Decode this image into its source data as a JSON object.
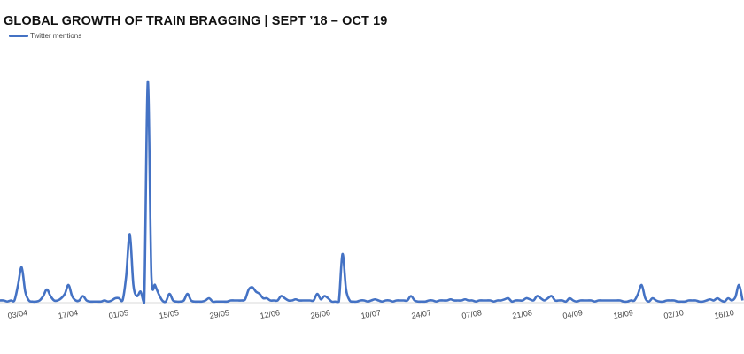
{
  "chart_data": {
    "type": "line",
    "title": "GLOBAL GROWTH OF TRAIN BRAGGING | SEPT ’18 – OCT 19",
    "xlabel": "",
    "ylabel": "",
    "ylim": [
      0,
      100
    ],
    "grid": false,
    "legend_placement": "top-left",
    "color": "#4472C4",
    "baseline_color": "#D9D9D9",
    "x_ticks": [
      "03/04",
      "17/04",
      "01/05",
      "15/05",
      "29/05",
      "12/06",
      "26/06",
      "10/07",
      "24/07",
      "07/08",
      "21/08",
      "04/09",
      "18/09",
      "02/10",
      "16/10"
    ],
    "x": [
      "29/03",
      "30/03",
      "31/03",
      "01/04",
      "02/04",
      "03/04",
      "04/04",
      "05/04",
      "06/04",
      "07/04",
      "08/04",
      "09/04",
      "10/04",
      "11/04",
      "12/04",
      "13/04",
      "14/04",
      "15/04",
      "16/04",
      "17/04",
      "18/04",
      "19/04",
      "20/04",
      "21/04",
      "22/04",
      "23/04",
      "24/04",
      "25/04",
      "26/04",
      "27/04",
      "28/04",
      "29/04",
      "30/04",
      "01/05",
      "02/05",
      "03/05",
      "04/05",
      "05/05",
      "06/05",
      "07/05",
      "08/05",
      "09/05",
      "10/05",
      "11/05",
      "12/05",
      "13/05",
      "14/05",
      "15/05",
      "16/05",
      "17/05",
      "18/05",
      "19/05",
      "20/05",
      "21/05",
      "22/05",
      "23/05",
      "24/05",
      "25/05",
      "26/05",
      "27/05",
      "28/05",
      "29/05",
      "30/05",
      "31/05",
      "01/06",
      "02/06",
      "03/06",
      "04/06",
      "05/06",
      "06/06",
      "07/06",
      "08/06",
      "09/06",
      "10/06",
      "11/06",
      "12/06",
      "13/06",
      "14/06",
      "15/06",
      "16/06",
      "17/06",
      "18/06",
      "19/06",
      "20/06",
      "21/06",
      "22/06",
      "23/06",
      "24/06",
      "25/06",
      "26/06",
      "27/06",
      "28/06",
      "29/06",
      "30/06",
      "01/07",
      "02/07",
      "03/07",
      "04/07",
      "05/07",
      "06/07",
      "07/07",
      "08/07",
      "09/07",
      "10/07",
      "11/07",
      "12/07",
      "13/07",
      "14/07",
      "15/07",
      "16/07",
      "17/07",
      "18/07",
      "19/07",
      "20/07",
      "21/07",
      "22/07",
      "23/07",
      "24/07",
      "25/07",
      "26/07",
      "27/07",
      "28/07",
      "29/07",
      "30/07",
      "31/07",
      "01/08",
      "02/08",
      "03/08",
      "04/08",
      "05/08",
      "06/08",
      "07/08",
      "08/08",
      "09/08",
      "10/08",
      "11/08",
      "12/08",
      "13/08",
      "14/08",
      "15/08",
      "16/08",
      "17/08",
      "18/08",
      "19/08",
      "20/08",
      "21/08",
      "22/08",
      "23/08",
      "24/08",
      "25/08",
      "26/08",
      "27/08",
      "28/08",
      "29/08",
      "30/08",
      "31/08",
      "01/09",
      "02/09",
      "03/09",
      "04/09",
      "05/09",
      "06/09",
      "07/09",
      "08/09",
      "09/09",
      "10/09",
      "11/09",
      "12/09",
      "13/09",
      "14/09",
      "15/09",
      "16/09",
      "17/09",
      "18/09",
      "19/09",
      "20/09",
      "21/09",
      "22/09",
      "23/09",
      "24/09",
      "25/09",
      "26/09",
      "27/09",
      "28/09",
      "29/09",
      "30/09",
      "01/10",
      "02/10",
      "03/10",
      "04/10",
      "05/10",
      "06/10",
      "07/10",
      "08/10",
      "09/10",
      "10/10",
      "11/10",
      "12/10",
      "13/10",
      "14/10",
      "15/10",
      "16/10",
      "17/10",
      "18/10",
      "19/10",
      "20/10",
      "21/10"
    ],
    "series": [
      {
        "name": "Twitter mentions",
        "values": [
          1,
          1,
          0.5,
          1,
          1,
          8,
          16,
          5,
          1,
          0.5,
          0.5,
          1,
          3,
          6,
          3,
          1,
          1,
          2,
          4,
          8,
          3,
          1,
          1,
          3,
          1,
          0.5,
          0.5,
          0.5,
          0.5,
          1,
          0.5,
          1,
          2,
          2,
          1,
          12,
          31,
          8,
          3,
          5,
          0,
          100,
          12,
          8,
          4,
          1,
          0.5,
          4,
          1,
          0.5,
          0.5,
          1,
          4,
          1,
          0.5,
          0.5,
          0.5,
          1,
          2,
          0.5,
          0.5,
          0.5,
          0.5,
          0.5,
          1,
          1,
          1,
          1,
          1.5,
          6,
          7,
          5,
          4,
          2,
          2,
          1,
          1,
          1,
          3,
          2,
          1,
          1,
          1.5,
          1,
          1,
          1,
          1,
          1,
          4,
          1.5,
          3,
          2,
          0.5,
          0.5,
          0.5,
          22,
          6,
          1,
          0.5,
          0.5,
          1,
          1,
          0.5,
          1,
          1.5,
          1,
          0.5,
          1,
          1,
          0.5,
          1,
          1,
          1,
          1,
          3,
          1,
          0.5,
          0.5,
          0.5,
          1,
          1,
          0.5,
          1,
          1,
          1,
          1.5,
          1,
          1,
          1,
          1.5,
          1,
          1,
          0.5,
          1,
          1,
          1,
          1,
          0.5,
          1,
          1,
          1.5,
          2,
          0.5,
          1,
          1,
          1,
          2,
          1.5,
          1,
          3,
          2,
          1,
          2,
          3,
          1,
          1,
          1,
          0.5,
          2,
          1,
          0.5,
          1,
          1,
          1,
          1,
          0.5,
          1,
          1,
          1,
          1,
          1,
          1,
          1,
          0.5,
          0.5,
          1,
          1,
          4,
          8,
          2,
          0.5,
          2,
          1,
          0.5,
          0.5,
          1,
          1,
          1,
          0.5,
          0.5,
          0.5,
          1,
          1,
          1,
          0.5,
          0.5,
          1,
          1.5,
          1,
          2,
          1,
          0.5,
          2,
          1,
          2.5,
          8,
          1
        ]
      }
    ]
  }
}
